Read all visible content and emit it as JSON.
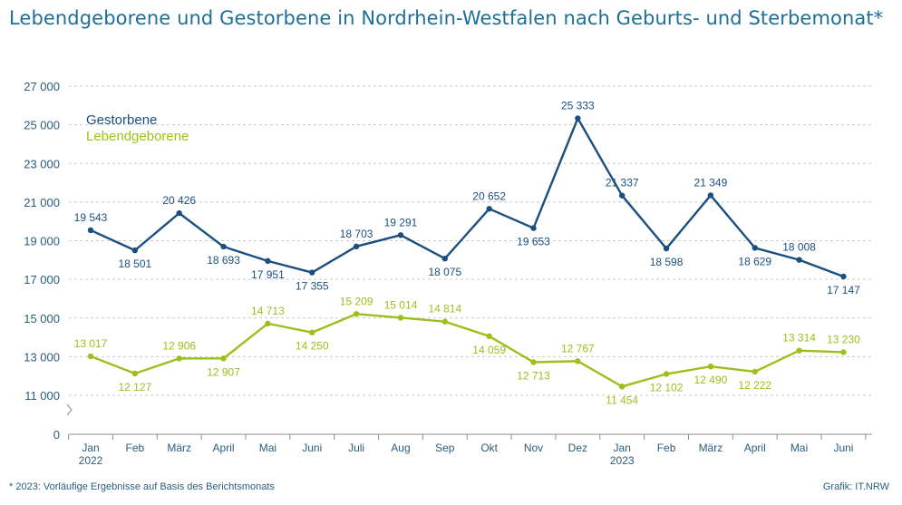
{
  "title": "Lebendgeborene und Gestorbene in Nordrhein-Westfalen nach Geburts- und Sterbemonat*",
  "footnote": "*   2023: Vorläufige Ergebnisse auf Basis des Berichtsmonats",
  "credit": "Grafik: IT.NRW",
  "colors": {
    "gestorbene": "#1b4f80",
    "lebendgeborene": "#9bc01c",
    "axis_text": "#2a5d7c",
    "grid": "#c9c9c9"
  },
  "chart_data": {
    "type": "line",
    "categories": [
      "Jan",
      "Feb",
      "März",
      "April",
      "Mai",
      "Juni",
      "Juli",
      "Aug",
      "Sep",
      "Okt",
      "Nov",
      "Dez",
      "Jan",
      "Feb",
      "März",
      "April",
      "Mai",
      "Juni"
    ],
    "year_labels": [
      {
        "index": 0,
        "label": "2022"
      },
      {
        "index": 12,
        "label": "2023"
      }
    ],
    "y_ticks": [
      0,
      11000,
      13000,
      15000,
      17000,
      19000,
      21000,
      23000,
      25000,
      27000
    ],
    "y_tick_labels": [
      "0",
      "11 000",
      "13 000",
      "15 000",
      "17 000",
      "19 000",
      "21 000",
      "23 000",
      "25 000",
      "27 000"
    ],
    "y_axis_break": "between 0 and 11 000",
    "grid": true,
    "legend_position": "top-left",
    "series": [
      {
        "name": "Gestorbene",
        "values": [
          19543,
          18501,
          20426,
          18693,
          17951,
          17355,
          18703,
          19291,
          18075,
          20652,
          19653,
          25333,
          21337,
          18598,
          21349,
          18629,
          18008,
          17147
        ],
        "labels": [
          "19 543",
          "18 501",
          "20 426",
          "18 693",
          "17 951",
          "17 355",
          "18 703",
          "19 291",
          "18 075",
          "20 652",
          "19 653",
          "25 333",
          "21 337",
          "18 598",
          "21 349",
          "18 629",
          "18 008",
          "17 147"
        ]
      },
      {
        "name": "Lebendgeborene",
        "values": [
          13017,
          12127,
          12906,
          12907,
          14713,
          14250,
          15209,
          15014,
          14814,
          14059,
          12713,
          12767,
          11454,
          12102,
          12490,
          12222,
          13314,
          13230
        ],
        "labels": [
          "13 017",
          "12 127",
          "12 906",
          "12 907",
          "14 713",
          "14 250",
          "15 209",
          "15 014",
          "14 814",
          "14 059",
          "12 713",
          "12 767",
          "11 454",
          "12 102",
          "12 490",
          "12 222",
          "13 314",
          "13 230"
        ]
      }
    ]
  }
}
